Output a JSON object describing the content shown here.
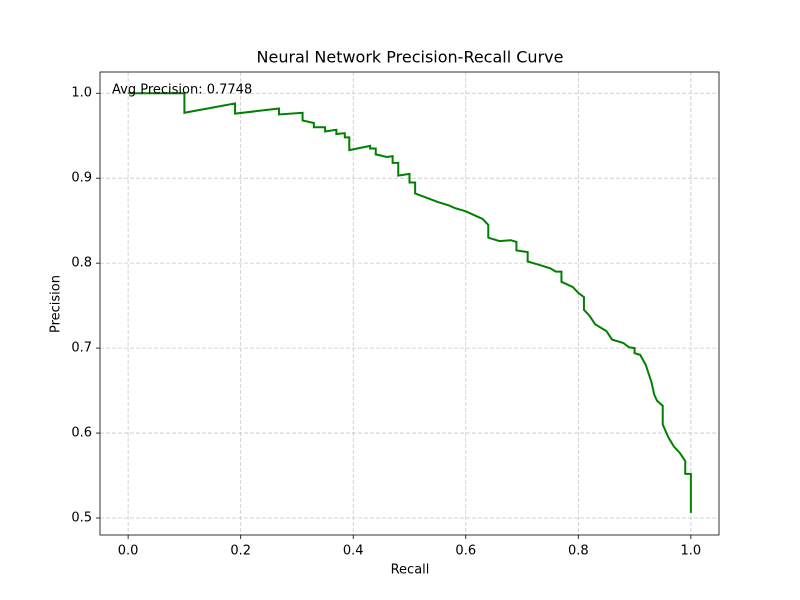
{
  "chart_data": {
    "type": "line",
    "title": "Neural Network Precision-Recall Curve",
    "x_label": "Recall",
    "y_label": "Precision",
    "annotation": "Avg Precision: 0.7748",
    "color": "#008000",
    "grid": true,
    "xlim": [
      -0.05,
      1.05
    ],
    "ylim": [
      0.48,
      1.025
    ],
    "xticks": [
      {
        "value": 0,
        "label": "0.0"
      },
      0.2,
      0.4,
      0.6,
      0.8,
      {
        "value": 1,
        "label": "1.0"
      }
    ],
    "yticks": [
      0.5,
      0.6,
      0.7,
      0.8,
      0.9,
      {
        "value": 1,
        "label": "1.0"
      }
    ],
    "x": [
      0,
      0.1,
      0.1,
      0.19,
      0.19,
      0.268,
      0.268,
      0.31,
      0.31,
      0.33,
      0.33,
      0.35,
      0.35,
      0.37,
      0.37,
      0.385,
      0.385,
      0.393,
      0.393,
      0.43,
      0.43,
      0.44,
      0.44,
      0.46,
      0.47,
      0.47,
      0.48,
      0.48,
      0.5,
      0.5,
      0.51,
      0.51,
      0.53,
      0.55,
      0.57,
      0.58,
      0.6,
      0.62,
      0.63,
      0.64,
      0.64,
      0.66,
      0.68,
      0.69,
      0.69,
      0.71,
      0.71,
      0.73,
      0.75,
      0.76,
      0.77,
      0.77,
      0.79,
      0.8,
      0.81,
      0.81,
      0.82,
      0.83,
      0.85,
      0.86,
      0.88,
      0.89,
      0.9,
      0.9,
      0.91,
      0.92,
      0.93,
      0.935,
      0.94,
      0.95,
      0.95,
      0.96,
      0.97,
      0.98,
      0.99,
      0.99,
      1.0,
      1.0
    ],
    "values": [
      1.0,
      1.0,
      0.977,
      0.988,
      0.976,
      0.982,
      0.975,
      0.977,
      0.968,
      0.965,
      0.96,
      0.96,
      0.955,
      0.957,
      0.952,
      0.953,
      0.948,
      0.948,
      0.933,
      0.938,
      0.935,
      0.935,
      0.928,
      0.925,
      0.926,
      0.918,
      0.918,
      0.903,
      0.905,
      0.895,
      0.895,
      0.882,
      0.877,
      0.872,
      0.868,
      0.865,
      0.861,
      0.855,
      0.852,
      0.845,
      0.83,
      0.826,
      0.827,
      0.825,
      0.815,
      0.813,
      0.802,
      0.798,
      0.794,
      0.79,
      0.79,
      0.778,
      0.772,
      0.765,
      0.76,
      0.745,
      0.738,
      0.728,
      0.72,
      0.71,
      0.706,
      0.701,
      0.7,
      0.694,
      0.692,
      0.68,
      0.66,
      0.645,
      0.638,
      0.632,
      0.61,
      0.595,
      0.584,
      0.577,
      0.567,
      0.552,
      0.552,
      0.506
    ]
  }
}
